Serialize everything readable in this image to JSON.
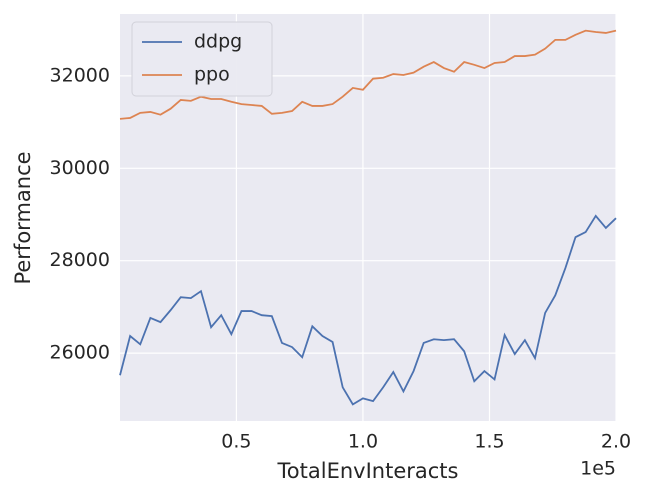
{
  "chart_data": {
    "type": "line",
    "x_label": "TotalEnvInteracts",
    "y_label": "Performance",
    "x_offset_text": "1e5",
    "x": [
      4000,
      8000,
      12000,
      16000,
      20000,
      24000,
      28000,
      32000,
      36000,
      40000,
      44000,
      48000,
      52000,
      56000,
      60000,
      64000,
      68000,
      72000,
      76000,
      80000,
      84000,
      88000,
      92000,
      96000,
      100000,
      104000,
      108000,
      112000,
      116000,
      120000,
      124000,
      128000,
      132000,
      136000,
      140000,
      144000,
      148000,
      152000,
      156000,
      160000,
      164000,
      168000,
      172000,
      176000,
      180000,
      184000,
      188000,
      192000,
      196000,
      200000
    ],
    "series": [
      {
        "name": "ddpg",
        "color": "#4c72b0",
        "values": [
          25520,
          26370,
          26190,
          26760,
          26670,
          26930,
          27210,
          27190,
          27340,
          26560,
          26820,
          26410,
          26910,
          26910,
          26820,
          26800,
          26220,
          26130,
          25910,
          26580,
          26370,
          26240,
          25260,
          24890,
          25020,
          24960,
          25260,
          25590,
          25170,
          25610,
          26220,
          26300,
          26280,
          26300,
          26040,
          25390,
          25610,
          25430,
          26390,
          25980,
          26280,
          25890,
          26870,
          27250,
          27840,
          28510,
          28620,
          28970,
          28710,
          28920
        ]
      },
      {
        "name": "ppo",
        "color": "#dd8452",
        "values": [
          31070,
          31090,
          31200,
          31220,
          31160,
          31290,
          31480,
          31460,
          31550,
          31500,
          31500,
          31440,
          31390,
          31370,
          31350,
          31180,
          31200,
          31240,
          31440,
          31350,
          31350,
          31390,
          31550,
          31740,
          31700,
          31940,
          31960,
          32040,
          32020,
          32070,
          32200,
          32300,
          32170,
          32090,
          32300,
          32240,
          32170,
          32280,
          32300,
          32430,
          32430,
          32460,
          32590,
          32780,
          32780,
          32890,
          32980,
          32950,
          32930,
          32980
        ]
      }
    ],
    "xlim": [
      4000,
      200000
    ],
    "xticks": [
      {
        "value": 50000,
        "label": "0.5"
      },
      {
        "value": 100000,
        "label": "1.0"
      },
      {
        "value": 150000,
        "label": "1.5"
      },
      {
        "value": 200000,
        "label": "2.0"
      }
    ],
    "ylim": [
      24530,
      33340
    ],
    "yticks": [
      26000,
      28000,
      30000,
      32000
    ],
    "grid": true,
    "legend": "upper-left"
  }
}
